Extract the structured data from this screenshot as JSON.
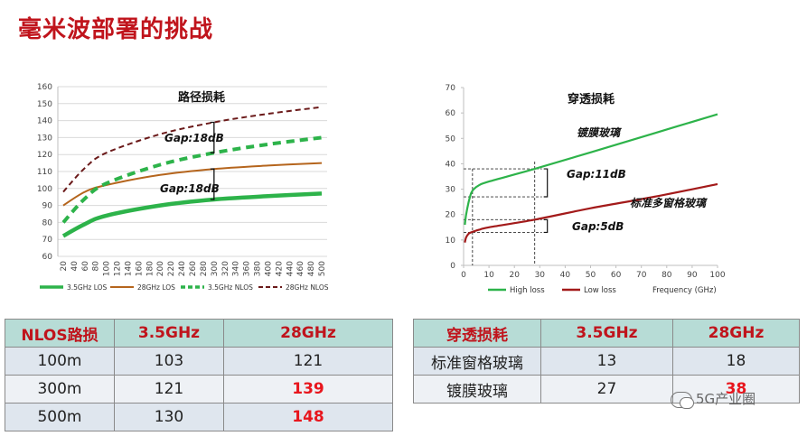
{
  "page": {
    "title": "毫米波部署的挑战"
  },
  "chart_data": [
    {
      "type": "line",
      "title": "路径损耗",
      "xlabel": "",
      "ylabel": "",
      "categories": [
        "20",
        "40",
        "60",
        "80",
        "100",
        "120",
        "140",
        "160",
        "180",
        "200",
        "220",
        "240",
        "260",
        "280",
        "300",
        "320",
        "340",
        "360",
        "380",
        "400",
        "420",
        "440",
        "460",
        "480",
        "500"
      ],
      "ylim": [
        60,
        160
      ],
      "yticks": [
        "60",
        "70",
        "80",
        "90",
        "100",
        "110",
        "120",
        "130",
        "140",
        "150",
        "160"
      ],
      "series": [
        {
          "name": "3.5GHz LOS",
          "color": "#2db34a",
          "style": "solid-thick"
        },
        {
          "name": "28GHz LOS",
          "color": "#b5651d",
          "style": "solid"
        },
        {
          "name": "3.5GHz NLOS",
          "color": "#2db34a",
          "style": "dashed-thick"
        },
        {
          "name": "28GHz NLOS",
          "color": "#6b1a1a",
          "style": "dashed"
        }
      ],
      "series_points": {
        "3.5GHz LOS": [
          [
            20,
            72
          ],
          [
            60,
            79
          ],
          [
            100,
            84
          ],
          [
            200,
            90
          ],
          [
            300,
            93.5
          ],
          [
            400,
            95.5
          ],
          [
            500,
            97
          ]
        ],
        "28GHz LOS": [
          [
            20,
            90
          ],
          [
            60,
            98
          ],
          [
            100,
            102
          ],
          [
            200,
            108
          ],
          [
            300,
            111.5
          ],
          [
            400,
            113.5
          ],
          [
            500,
            115
          ]
        ],
        "3.5GHz NLOS": [
          [
            20,
            80
          ],
          [
            60,
            94
          ],
          [
            100,
            103
          ],
          [
            200,
            114
          ],
          [
            300,
            121
          ],
          [
            400,
            126
          ],
          [
            500,
            130
          ]
        ],
        "28GHz NLOS": [
          [
            20,
            98
          ],
          [
            60,
            112
          ],
          [
            100,
            121
          ],
          [
            200,
            132
          ],
          [
            300,
            139
          ],
          [
            400,
            144
          ],
          [
            500,
            148
          ]
        ]
      },
      "annotations": [
        "Gap:18dB",
        "Gap:18dB"
      ],
      "grid": true,
      "legend": "bottom"
    },
    {
      "type": "line",
      "title": "穿透损耗",
      "xlabel": "Frequency (GHz)",
      "ylabel": "",
      "xlim": [
        0,
        100
      ],
      "ylim": [
        0,
        70
      ],
      "xticks": [
        "0",
        "10",
        "20",
        "30",
        "40",
        "50",
        "60",
        "70",
        "80",
        "90",
        "100"
      ],
      "yticks": [
        "0",
        "10",
        "20",
        "30",
        "40",
        "50",
        "60",
        "70"
      ],
      "series": [
        {
          "name": "High loss",
          "color": "#2db34a",
          "label": "镀膜玻璃"
        },
        {
          "name": "Low loss",
          "color": "#a31a1a",
          "label": "标准多窗格玻璃"
        }
      ],
      "series_points": {
        "High loss": [
          [
            0.5,
            16
          ],
          [
            1,
            20
          ],
          [
            2,
            25
          ],
          [
            3,
            28.5
          ],
          [
            4,
            30
          ],
          [
            6,
            31.5
          ],
          [
            10,
            33
          ],
          [
            28,
            38
          ],
          [
            50,
            44.5
          ],
          [
            75,
            52
          ],
          [
            100,
            59.5
          ]
        ],
        "Low loss": [
          [
            0.5,
            9
          ],
          [
            1,
            11
          ],
          [
            2,
            12.5
          ],
          [
            3,
            13
          ],
          [
            6,
            14
          ],
          [
            10,
            15
          ],
          [
            28,
            18
          ],
          [
            50,
            22.5
          ],
          [
            75,
            27
          ],
          [
            100,
            32
          ]
        ]
      },
      "annotations": [
        "Gap:11dB",
        "Gap:5dB"
      ],
      "grid": false,
      "legend": "bottom"
    }
  ],
  "tables": {
    "nlos": {
      "headers": [
        "NLOS路损",
        "3.5GHz",
        "28GHz"
      ],
      "rows": [
        [
          "100m",
          "103",
          "121"
        ],
        [
          "300m",
          "121",
          "139"
        ],
        [
          "500m",
          "130",
          "148"
        ]
      ]
    },
    "pen": {
      "headers": [
        "穿透损耗",
        "3.5GHz",
        "28GHz"
      ],
      "rows": [
        [
          "标准窗格玻璃",
          "13",
          "18"
        ],
        [
          "镀膜玻璃",
          "27",
          "38"
        ]
      ]
    }
  },
  "watermark": "5G产业圈",
  "colors": {
    "title": "#c0141c",
    "highlight": "#e8161d",
    "table_header": "#b7dcd6"
  }
}
